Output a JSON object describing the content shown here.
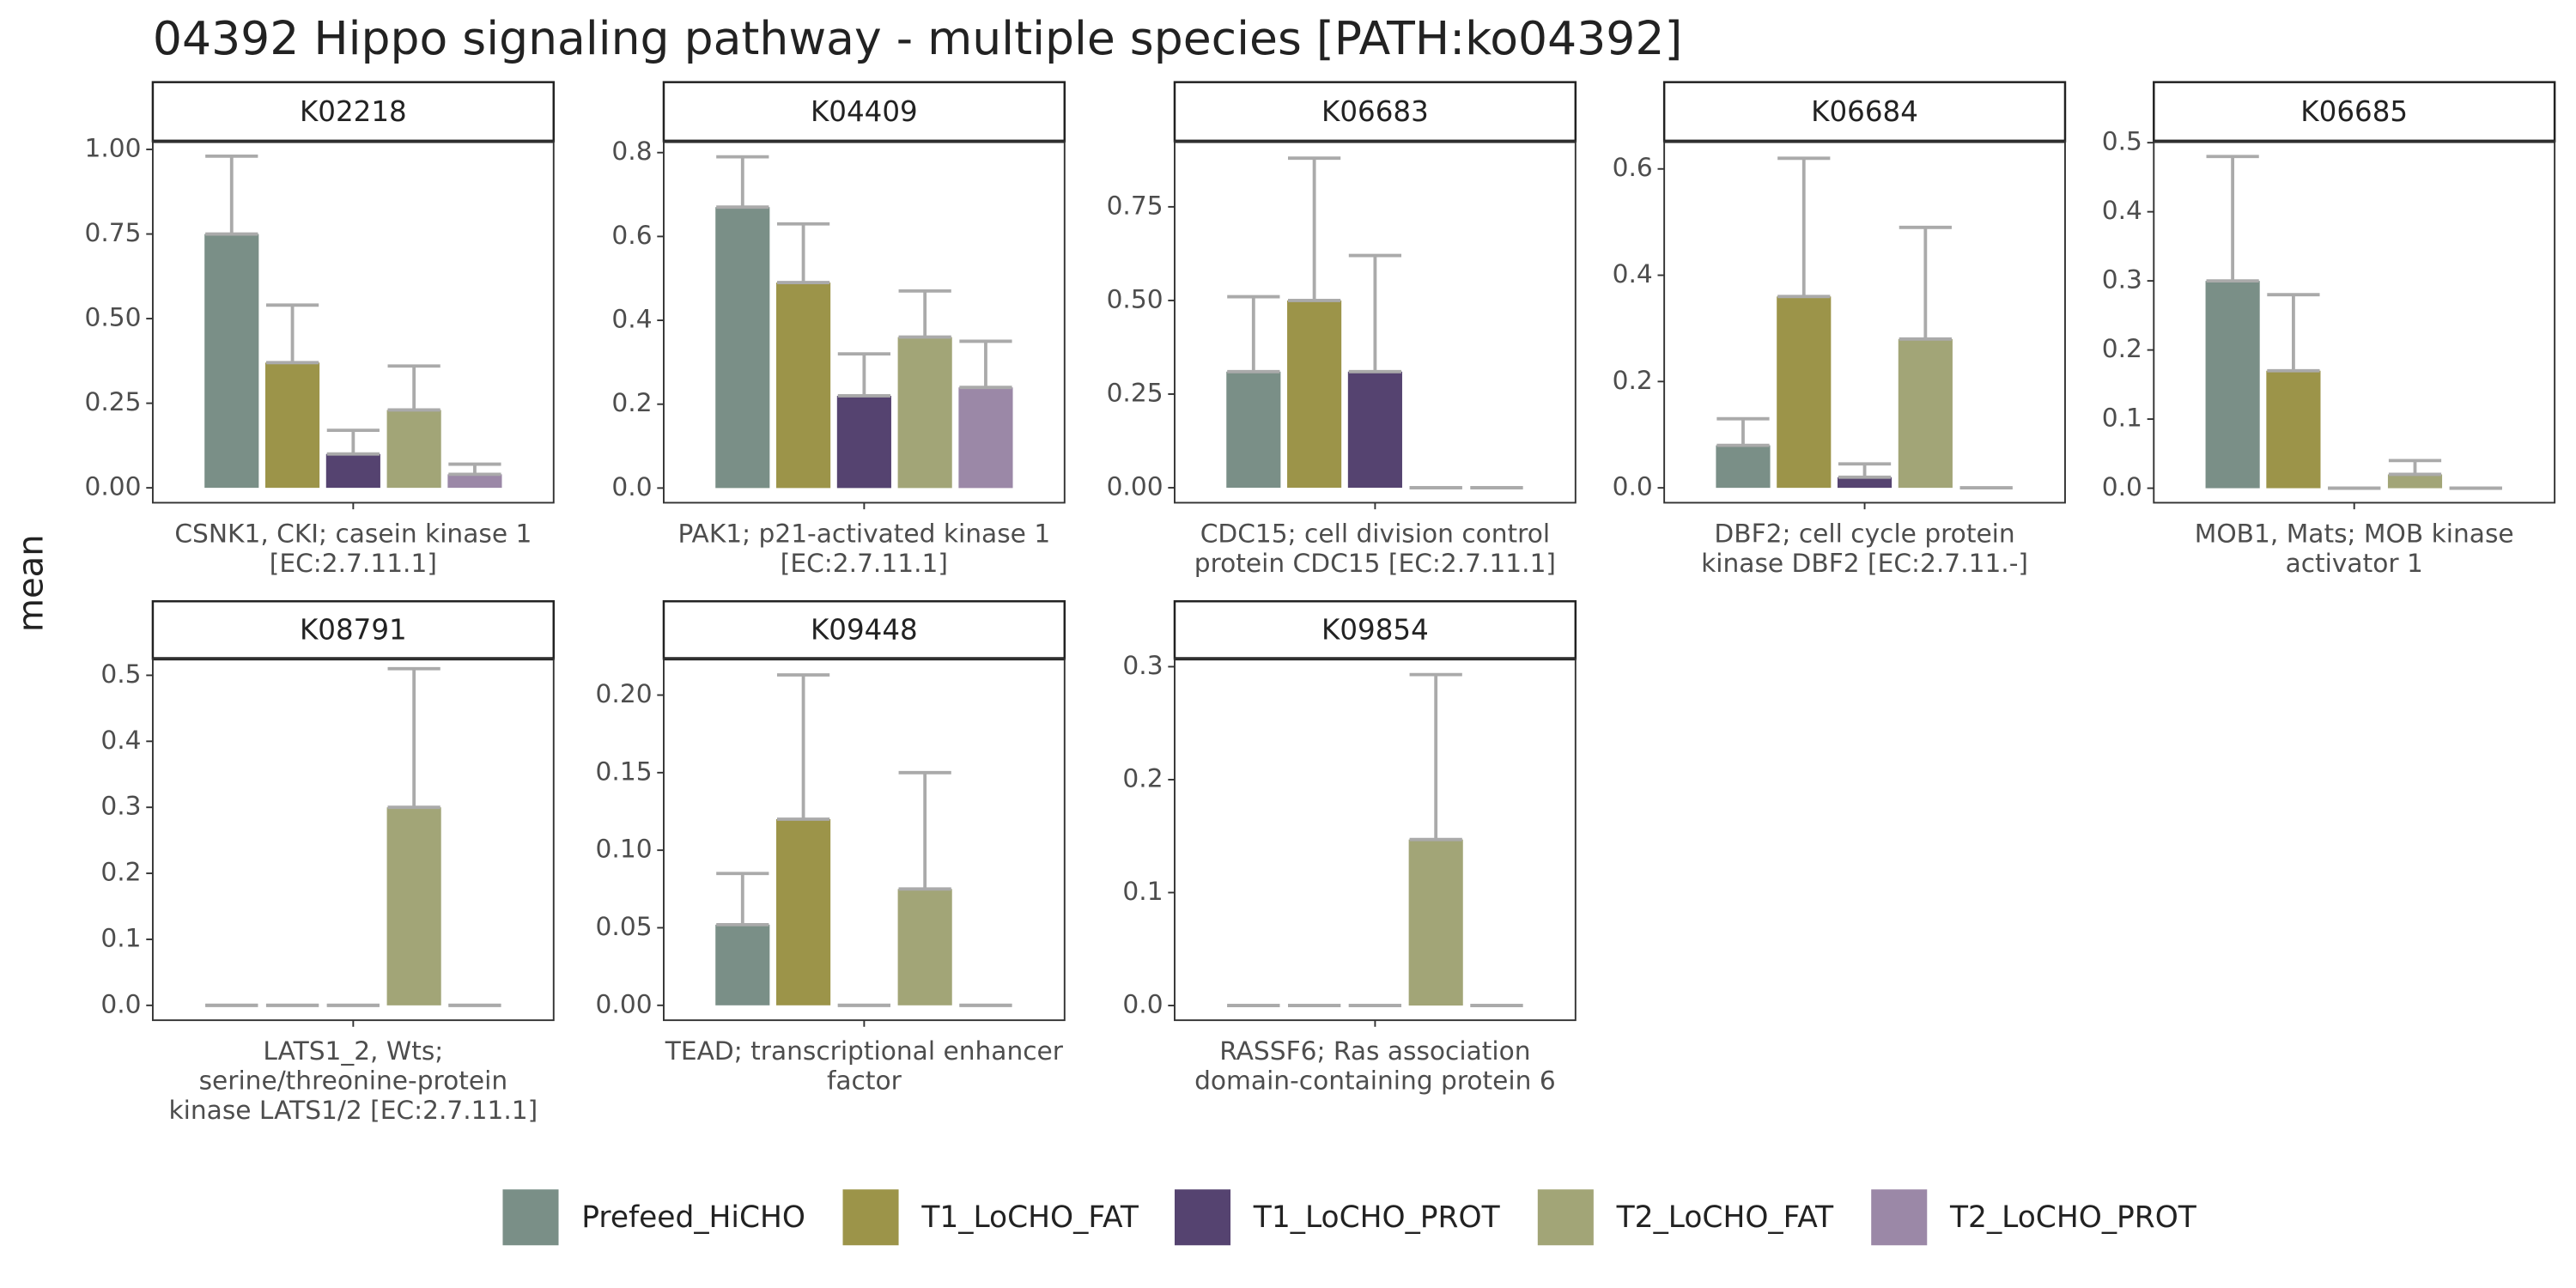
{
  "title": "04392 Hippo signaling pathway - multiple species [PATH:ko04392]",
  "y_label": "mean",
  "legend": {
    "series": [
      {
        "name": "Prefeed_HiCHO",
        "color": "#7a8f87"
      },
      {
        "name": "T1_LoCHO_FAT",
        "color": "#9c9449"
      },
      {
        "name": "T1_LoCHO_PROT",
        "color": "#554370"
      },
      {
        "name": "T2_LoCHO_FAT",
        "color": "#a2a577"
      },
      {
        "name": "T2_LoCHO_PROT",
        "color": "#9b88a7"
      }
    ]
  },
  "chart_data": [
    {
      "type": "bar",
      "strip": "K02218",
      "x_label": [
        "CSNK1, CKI; casein kinase 1",
        "[EC:2.7.11.1]"
      ],
      "values": [
        0.75,
        0.37,
        0.1,
        0.23,
        0.04
      ],
      "errors": [
        0.23,
        0.17,
        0.07,
        0.13,
        0.03
      ],
      "ylim": [
        -0.044,
        1.024
      ],
      "yticks": [
        {
          "value": 0,
          "label": "0.00"
        },
        0.25,
        {
          "value": 0.5,
          "label": "0.50"
        },
        0.75,
        {
          "value": 1,
          "label": "1.00"
        }
      ]
    },
    {
      "type": "bar",
      "strip": "K04409",
      "x_label": [
        "PAK1; p21-activated kinase 1",
        "[EC:2.7.11.1]"
      ],
      "values": [
        0.67,
        0.49,
        0.22,
        0.36,
        0.24
      ],
      "errors": [
        0.12,
        0.14,
        0.1,
        0.11,
        0.11
      ],
      "ylim": [
        -0.035,
        0.827
      ],
      "yticks": [
        {
          "value": 0,
          "label": "0.0"
        },
        0.2,
        0.4,
        0.6,
        0.8
      ]
    },
    {
      "type": "bar",
      "strip": "K06683",
      "x_label": [
        "CDC15; cell division control",
        "protein CDC15 [EC:2.7.11.1]"
      ],
      "values": [
        0.31,
        0.5,
        0.31,
        0,
        0
      ],
      "errors": [
        0.2,
        0.38,
        0.31,
        0,
        0
      ],
      "ylim": [
        -0.04,
        0.925
      ],
      "yticks": [
        {
          "value": 0,
          "label": "0.00"
        },
        0.25,
        {
          "value": 0.5,
          "label": "0.50"
        },
        0.75
      ]
    },
    {
      "type": "bar",
      "strip": "K06684",
      "x_label": [
        "DBF2; cell cycle protein",
        "kinase DBF2 [EC:2.7.11.-]"
      ],
      "values": [
        0.08,
        0.36,
        0.02,
        0.28,
        0
      ],
      "errors": [
        0.05,
        0.26,
        0.025,
        0.21,
        0
      ],
      "ylim": [
        -0.028,
        0.652
      ],
      "yticks": [
        {
          "value": 0,
          "label": "0.0"
        },
        0.2,
        0.4,
        0.6
      ]
    },
    {
      "type": "bar",
      "strip": "K06685",
      "x_label": [
        "MOB1, Mats; MOB kinase",
        "activator 1"
      ],
      "values": [
        0.3,
        0.17,
        0,
        0.02,
        0
      ],
      "errors": [
        0.18,
        0.11,
        0,
        0.02,
        0
      ],
      "ylim": [
        -0.021,
        0.502
      ],
      "yticks": [
        {
          "value": 0,
          "label": "0.0"
        },
        0.1,
        0.2,
        0.3,
        0.4,
        0.5
      ]
    },
    {
      "type": "bar",
      "strip": "K08791",
      "x_label": [
        "LATS1_2, Wts;",
        "serine/threonine-protein",
        "kinase LATS1/2 [EC:2.7.11.1]"
      ],
      "values": [
        0,
        0,
        0,
        0.3,
        0
      ],
      "errors": [
        0,
        0,
        0,
        0.21,
        0
      ],
      "ylim": [
        -0.0225,
        0.525
      ],
      "yticks": [
        {
          "value": 0,
          "label": "0.0"
        },
        0.1,
        0.2,
        0.3,
        0.4,
        0.5
      ]
    },
    {
      "type": "bar",
      "strip": "K09448",
      "x_label": [
        "TEAD; transcriptional enhancer",
        "factor"
      ],
      "values": [
        0.052,
        0.12,
        0,
        0.075,
        0
      ],
      "errors": [
        0.033,
        0.093,
        0,
        0.075,
        0
      ],
      "ylim": [
        -0.0096,
        0.2234
      ],
      "yticks": [
        {
          "value": 0,
          "label": "0.00"
        },
        0.05,
        {
          "value": 0.1,
          "label": "0.10"
        },
        0.15,
        {
          "value": 0.2,
          "label": "0.20"
        }
      ]
    },
    {
      "type": "bar",
      "strip": "K09854",
      "x_label": [
        "RASSF6; Ras association",
        "domain-containing protein 6"
      ],
      "values": [
        0,
        0,
        0,
        0.147,
        0
      ],
      "errors": [
        0,
        0,
        0,
        0.146,
        0
      ],
      "ylim": [
        -0.013,
        0.307
      ],
      "yticks": [
        {
          "value": 0,
          "label": "0.0"
        },
        0.1,
        0.2,
        0.3
      ]
    }
  ]
}
